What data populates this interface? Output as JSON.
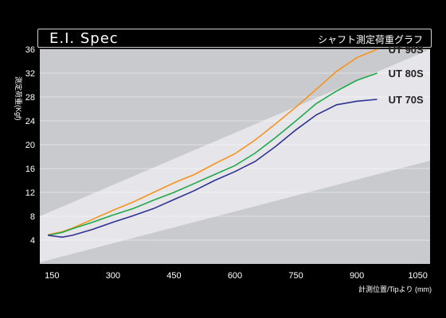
{
  "header": {
    "title": "E.I. Spec",
    "subtitle": "シャフト測定荷重グラフ"
  },
  "chart_data": {
    "type": "line",
    "xlabel": "計測位置/Tipより (mm)",
    "ylabel": "測定荷重(Kgf)",
    "xlim": [
      120,
      1080
    ],
    "ylim": [
      0,
      36
    ],
    "x_ticks": [
      150,
      300,
      450,
      600,
      750,
      900,
      1050
    ],
    "y_ticks": [
      4,
      8,
      12,
      16,
      20,
      24,
      28,
      32,
      36
    ],
    "grid": true,
    "legend": "right (labels next to line ends)",
    "series": [
      {
        "name": "UT 90S",
        "color": "#f7931e",
        "points": [
          [
            140,
            4.9
          ],
          [
            175,
            5.4
          ],
          [
            200,
            6.0
          ],
          [
            250,
            7.5
          ],
          [
            300,
            9.0
          ],
          [
            350,
            10.4
          ],
          [
            400,
            12.0
          ],
          [
            450,
            13.6
          ],
          [
            500,
            15.0
          ],
          [
            550,
            16.8
          ],
          [
            600,
            18.5
          ],
          [
            650,
            20.8
          ],
          [
            700,
            23.5
          ],
          [
            750,
            26.3
          ],
          [
            800,
            29.3
          ],
          [
            850,
            32.3
          ],
          [
            900,
            34.6
          ],
          [
            950,
            36.0
          ]
        ]
      },
      {
        "name": "UT 80S",
        "color": "#20a84a",
        "points": [
          [
            140,
            4.8
          ],
          [
            175,
            5.3
          ],
          [
            200,
            5.9
          ],
          [
            250,
            7.0
          ],
          [
            300,
            8.2
          ],
          [
            350,
            9.3
          ],
          [
            400,
            10.7
          ],
          [
            450,
            12.0
          ],
          [
            500,
            13.5
          ],
          [
            550,
            15.0
          ],
          [
            600,
            16.5
          ],
          [
            650,
            18.6
          ],
          [
            700,
            21.2
          ],
          [
            750,
            24.0
          ],
          [
            800,
            26.9
          ],
          [
            850,
            29.0
          ],
          [
            900,
            30.8
          ],
          [
            950,
            32.0
          ]
        ]
      },
      {
        "name": "UT 70S",
        "color": "#2e3192",
        "points": [
          [
            140,
            4.8
          ],
          [
            175,
            4.5
          ],
          [
            200,
            4.8
          ],
          [
            250,
            5.8
          ],
          [
            300,
            7.0
          ],
          [
            350,
            8.1
          ],
          [
            400,
            9.3
          ],
          [
            450,
            10.8
          ],
          [
            500,
            12.3
          ],
          [
            550,
            14.0
          ],
          [
            600,
            15.5
          ],
          [
            650,
            17.2
          ],
          [
            700,
            19.7
          ],
          [
            750,
            22.5
          ],
          [
            800,
            25.0
          ],
          [
            850,
            26.7
          ],
          [
            900,
            27.3
          ],
          [
            950,
            27.6
          ]
        ]
      }
    ]
  },
  "colors": {
    "background": "#000000",
    "plot_light": "#e6e6ea",
    "plot_dark": "#c9cacd",
    "text": "#ffffff",
    "label": "#231f20"
  }
}
